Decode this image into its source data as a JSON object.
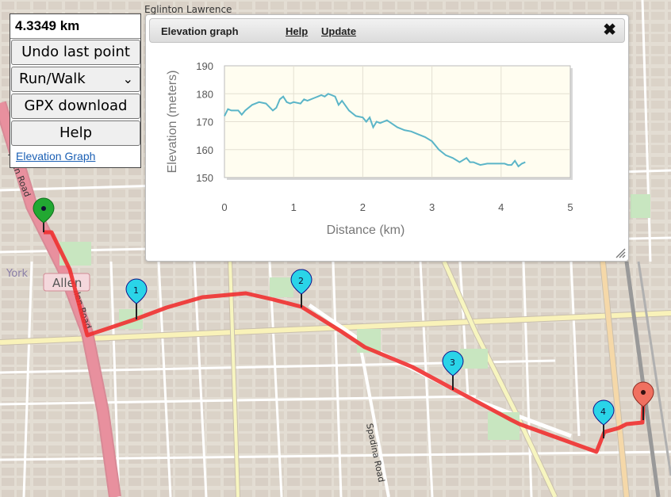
{
  "panel": {
    "distance": "4.3349 km",
    "undo_label": "Undo last point",
    "mode_label": "Run/Walk",
    "gpx_label": "GPX download",
    "help_label": "Help",
    "elevation_link": "Elevation Graph"
  },
  "dialog": {
    "title": "Elevation graph",
    "help_link": "Help",
    "update_link": "Update",
    "close_icon": "close-icon"
  },
  "map": {
    "labels": {
      "allen_road": "Allen Road",
      "allen_road_lower": "Allen Road",
      "allen_shield": "Allen",
      "york": "York",
      "spadina": "Spadina Road",
      "eglinton": "Eglinton Lawrence"
    },
    "markers": {
      "start": "",
      "m1": "1",
      "m2": "2",
      "m3": "3",
      "m4": "4",
      "end": ""
    },
    "colors": {
      "route": "#f03030",
      "start_marker": "#22a832",
      "waypoint_marker": "#2ad4e8",
      "end_marker": "#f07060"
    }
  },
  "chart_data": {
    "type": "line",
    "xlabel": "Distance (km)",
    "ylabel": "Elevation (meters)",
    "xlim": [
      0,
      5
    ],
    "ylim": [
      150,
      190
    ],
    "x_ticks": [
      0,
      1,
      2,
      3,
      4,
      5
    ],
    "y_ticks": [
      150,
      160,
      170,
      180,
      190
    ],
    "grid": true,
    "line_color": "#5bb5c8",
    "series": [
      {
        "x": [
          0,
          0.05,
          0.1,
          0.2,
          0.25,
          0.3,
          0.4,
          0.5,
          0.6,
          0.7,
          0.75,
          0.8,
          0.85,
          0.9,
          0.95,
          1.0,
          1.1,
          1.15,
          1.2,
          1.3,
          1.35,
          1.4,
          1.45,
          1.5,
          1.55,
          1.6,
          1.65,
          1.7,
          1.8,
          1.9,
          2.0,
          2.05,
          2.1,
          2.15,
          2.2,
          2.25,
          2.35,
          2.5,
          2.6,
          2.7,
          2.8,
          2.9,
          3.0,
          3.1,
          3.2,
          3.3,
          3.4,
          3.5,
          3.55,
          3.6,
          3.65,
          3.7,
          3.8,
          3.9,
          4.0,
          4.05,
          4.1,
          4.15,
          4.2,
          4.25,
          4.3,
          4.35
        ],
        "y": [
          172,
          174.5,
          174,
          174,
          172.5,
          174,
          176,
          177,
          176.5,
          174,
          175,
          178,
          179,
          177,
          176.5,
          177,
          176.5,
          178,
          177.5,
          178.5,
          179,
          179.5,
          179,
          180,
          179.5,
          179,
          176,
          177.5,
          174,
          172,
          171.5,
          170,
          171.5,
          168,
          170,
          169.5,
          170.5,
          168,
          167,
          166.5,
          165.5,
          164.5,
          163,
          160,
          158,
          157,
          155.5,
          157,
          155.5,
          155.5,
          155,
          154.5,
          155,
          155,
          155,
          155,
          154.5,
          154.5,
          156,
          154,
          155,
          155.5
        ]
      }
    ]
  }
}
